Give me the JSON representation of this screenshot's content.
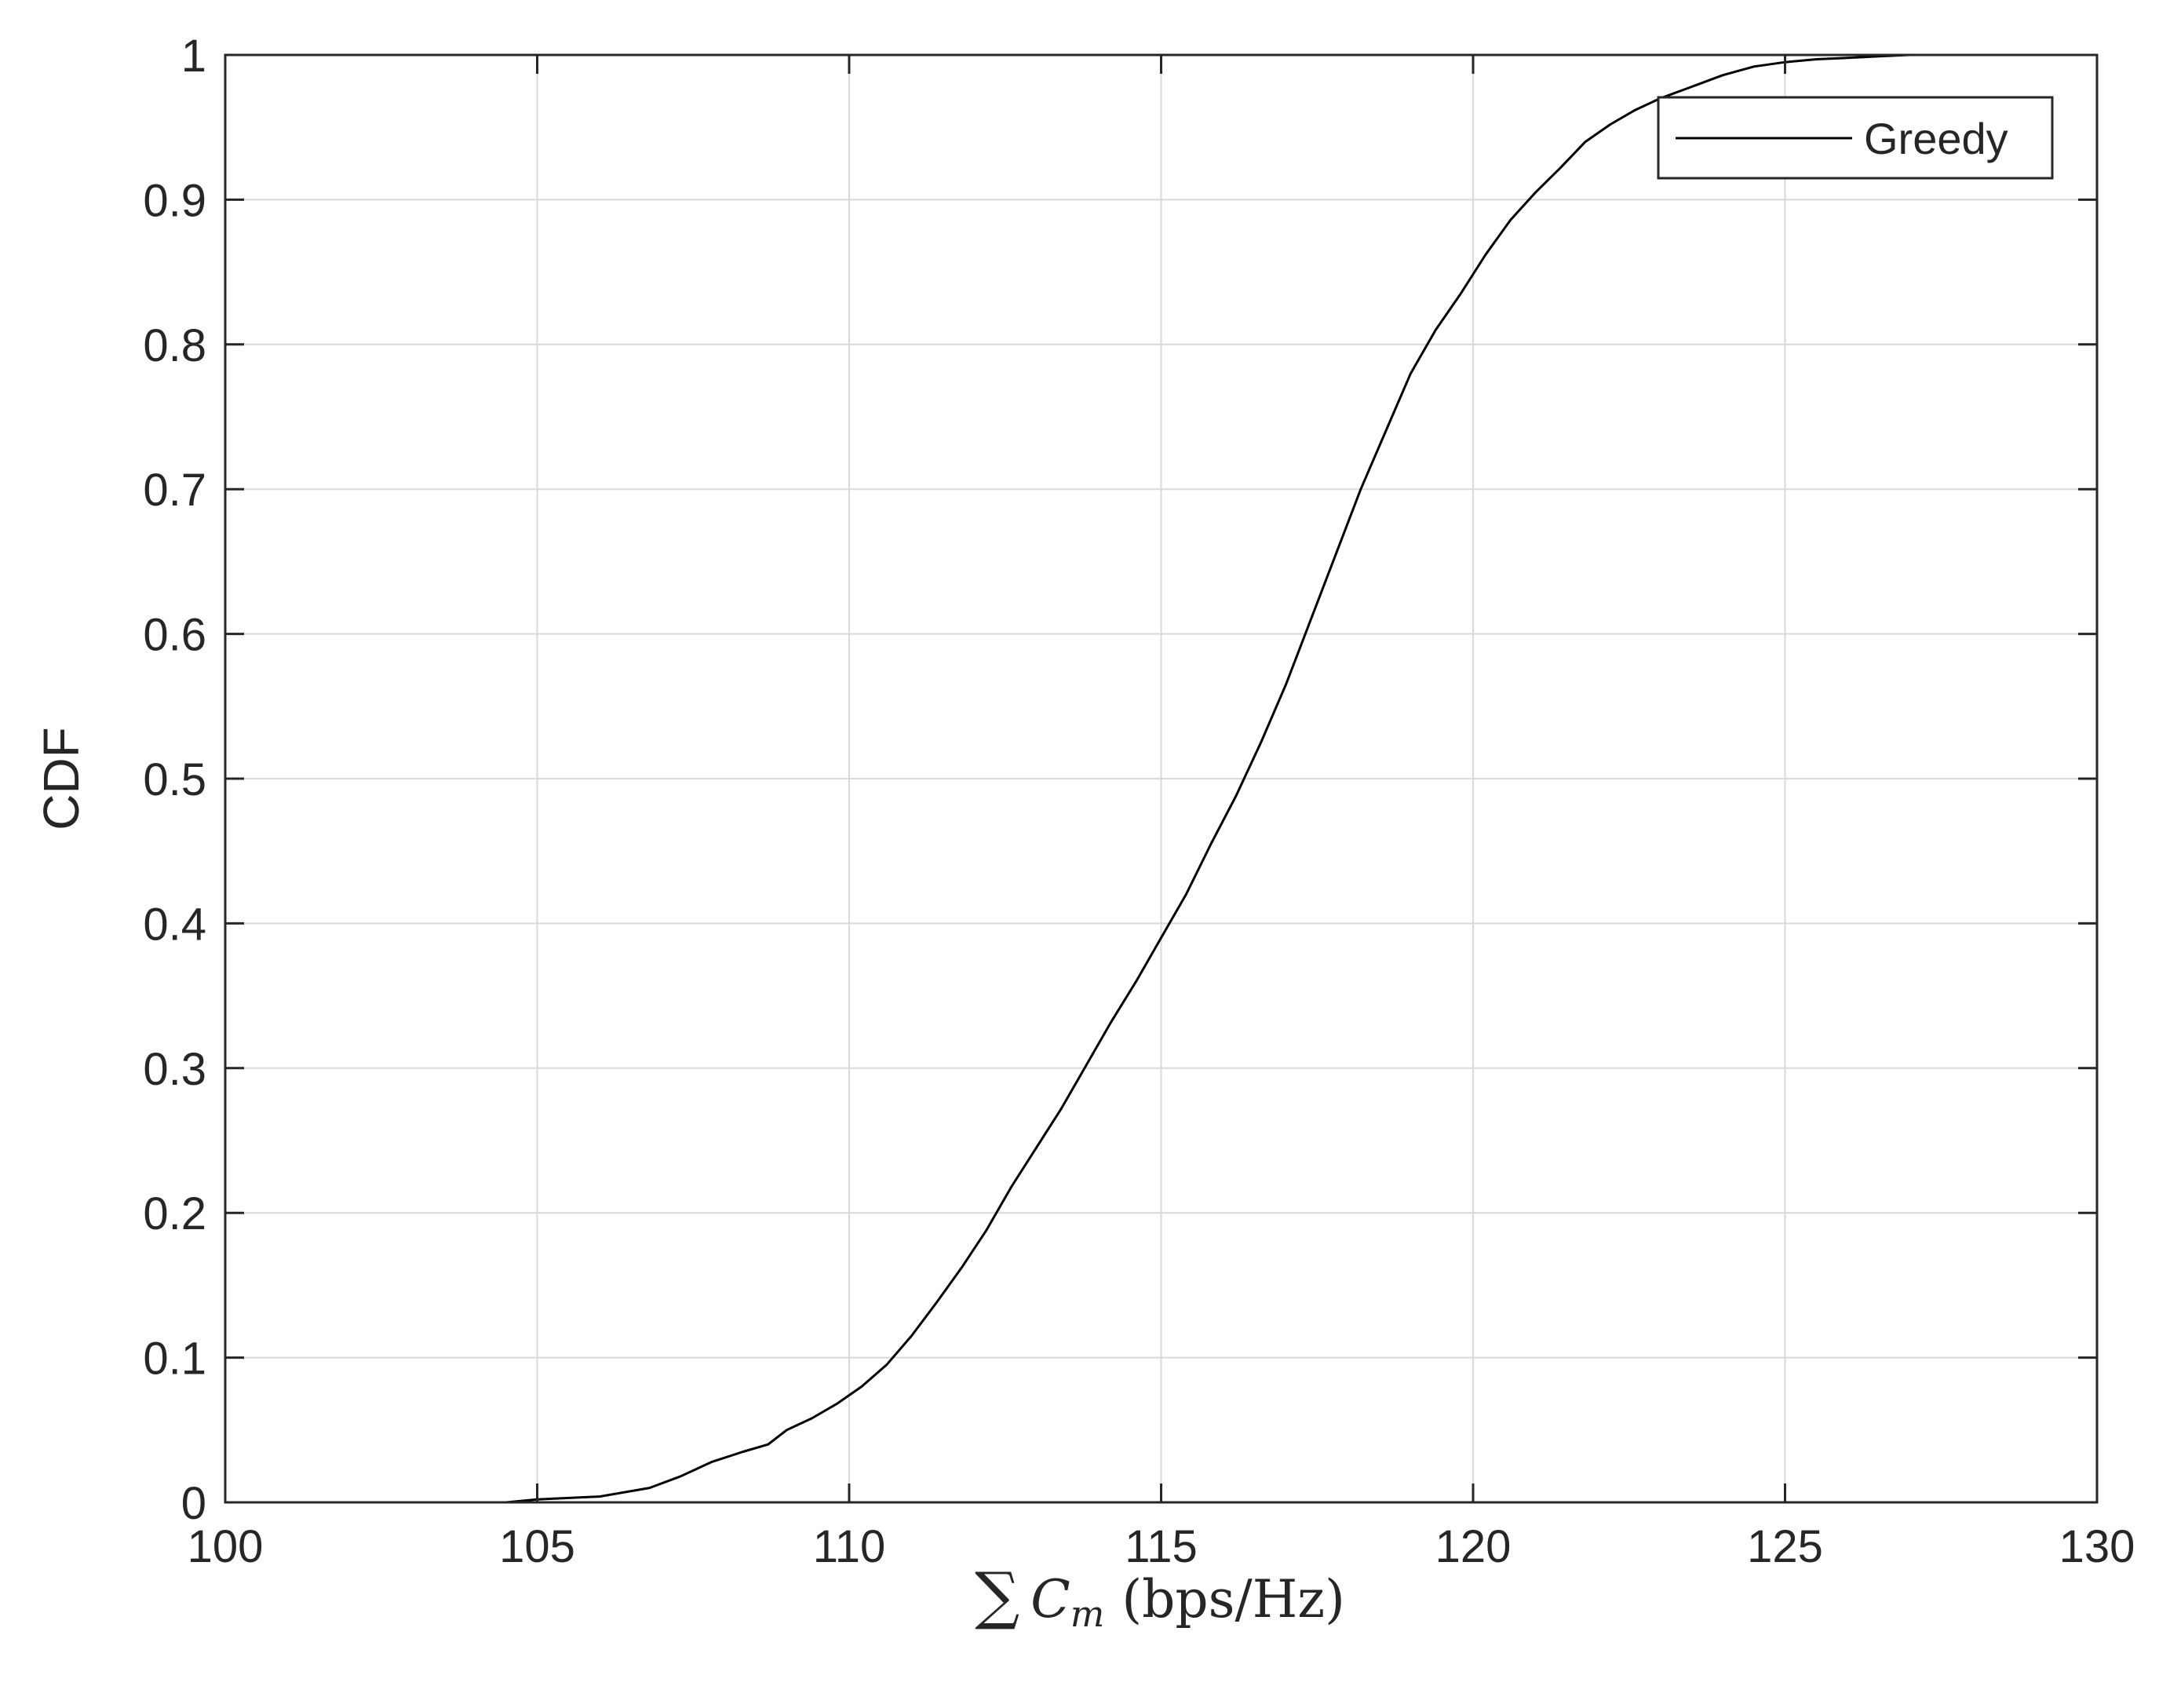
{
  "chart_data": {
    "type": "line",
    "title": "",
    "xlabel": "∑ Cm (bps/Hz)",
    "xlabel_parts": {
      "sum": "∑",
      "symbol": "C",
      "subscript": "m",
      "unit": "(bps/Hz)"
    },
    "ylabel": "CDF",
    "xlim": [
      100,
      130
    ],
    "ylim": [
      0,
      1
    ],
    "xticks": [
      100,
      105,
      110,
      115,
      120,
      125,
      130
    ],
    "xtick_labels": [
      "100",
      "105",
      "110",
      "115",
      "120",
      "125",
      "130"
    ],
    "yticks": [
      0,
      0.1,
      0.2,
      0.3,
      0.4,
      0.5,
      0.6,
      0.7,
      0.8,
      0.9,
      1
    ],
    "ytick_labels": [
      "0",
      "0.1",
      "0.2",
      "0.3",
      "0.4",
      "0.5",
      "0.6",
      "0.7",
      "0.8",
      "0.9",
      "1"
    ],
    "grid": true,
    "legend": {
      "position": "top-right",
      "entries": [
        "Greedy"
      ]
    },
    "series": [
      {
        "name": "Greedy",
        "color": "#000000",
        "x": [
          103.5,
          104.5,
          105.0,
          106.0,
          106.8,
          107.3,
          107.8,
          108.3,
          108.7,
          109.0,
          109.4,
          109.8,
          110.2,
          110.6,
          111.0,
          111.4,
          111.8,
          112.2,
          112.6,
          113.0,
          113.4,
          113.8,
          114.2,
          114.6,
          115.0,
          115.4,
          115.8,
          116.2,
          116.6,
          117.0,
          117.4,
          117.8,
          118.2,
          118.6,
          119.0,
          119.4,
          119.8,
          120.2,
          120.6,
          121.0,
          121.4,
          121.8,
          122.2,
          122.6,
          123.0,
          123.5,
          124.0,
          124.5,
          125.0,
          125.5,
          126.0,
          126.5,
          127.0,
          127.5,
          128.0
        ],
        "y": [
          0.0,
          0.0,
          0.002,
          0.004,
          0.01,
          0.018,
          0.028,
          0.035,
          0.04,
          0.05,
          0.058,
          0.068,
          0.08,
          0.095,
          0.115,
          0.138,
          0.162,
          0.188,
          0.218,
          0.245,
          0.272,
          0.302,
          0.332,
          0.36,
          0.39,
          0.42,
          0.455,
          0.488,
          0.525,
          0.565,
          0.61,
          0.655,
          0.7,
          0.74,
          0.78,
          0.81,
          0.835,
          0.862,
          0.886,
          0.905,
          0.922,
          0.94,
          0.952,
          0.962,
          0.97,
          0.978,
          0.986,
          0.992,
          0.995,
          0.997,
          0.998,
          0.999,
          1.0,
          1.0,
          1.0
        ]
      }
    ]
  }
}
